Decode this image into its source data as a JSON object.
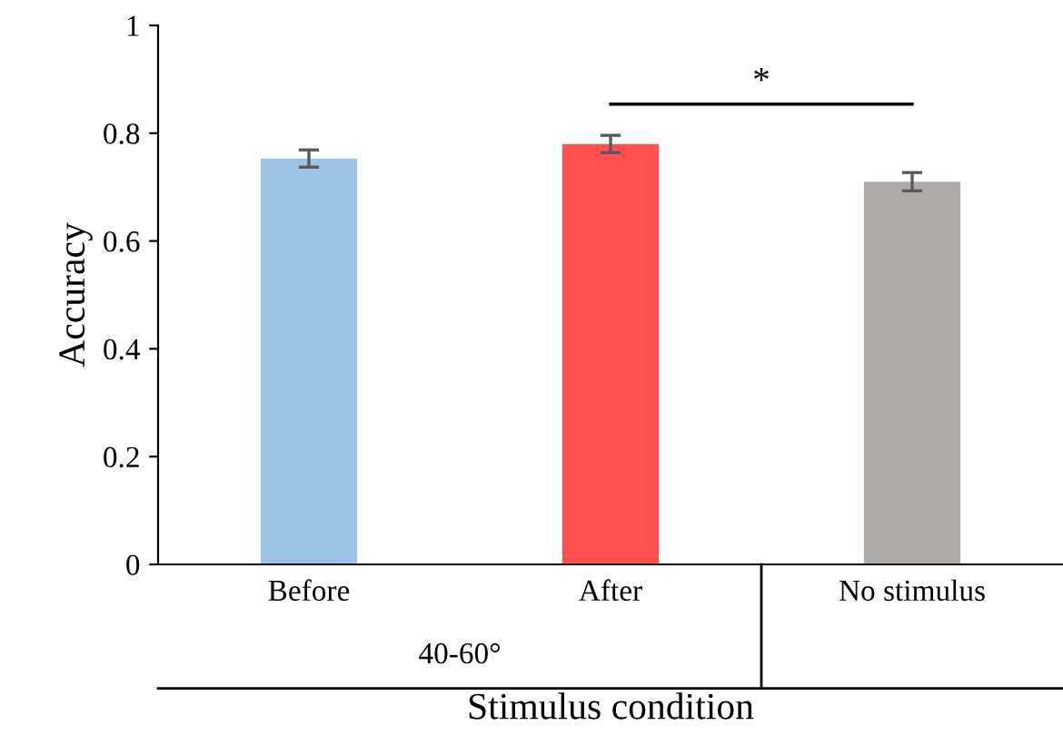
{
  "chart_data": {
    "type": "bar",
    "xlabel": "Stimulus condition",
    "ylabel": "Accuracy",
    "categories": [
      "Before",
      "After",
      "No stimulus"
    ],
    "values": [
      0.753,
      0.78,
      0.71
    ],
    "colors": [
      "#9dc3e6",
      "#ff4f4f",
      "#aeaaa8"
    ],
    "errors": [
      0.016,
      0.016,
      0.017
    ],
    "ylim": [
      0,
      1
    ],
    "yticks": [
      0,
      0.2,
      0.4,
      0.6,
      0.8,
      1
    ],
    "annotations": [
      "40-60°",
      "*"
    ],
    "grid": false
  }
}
